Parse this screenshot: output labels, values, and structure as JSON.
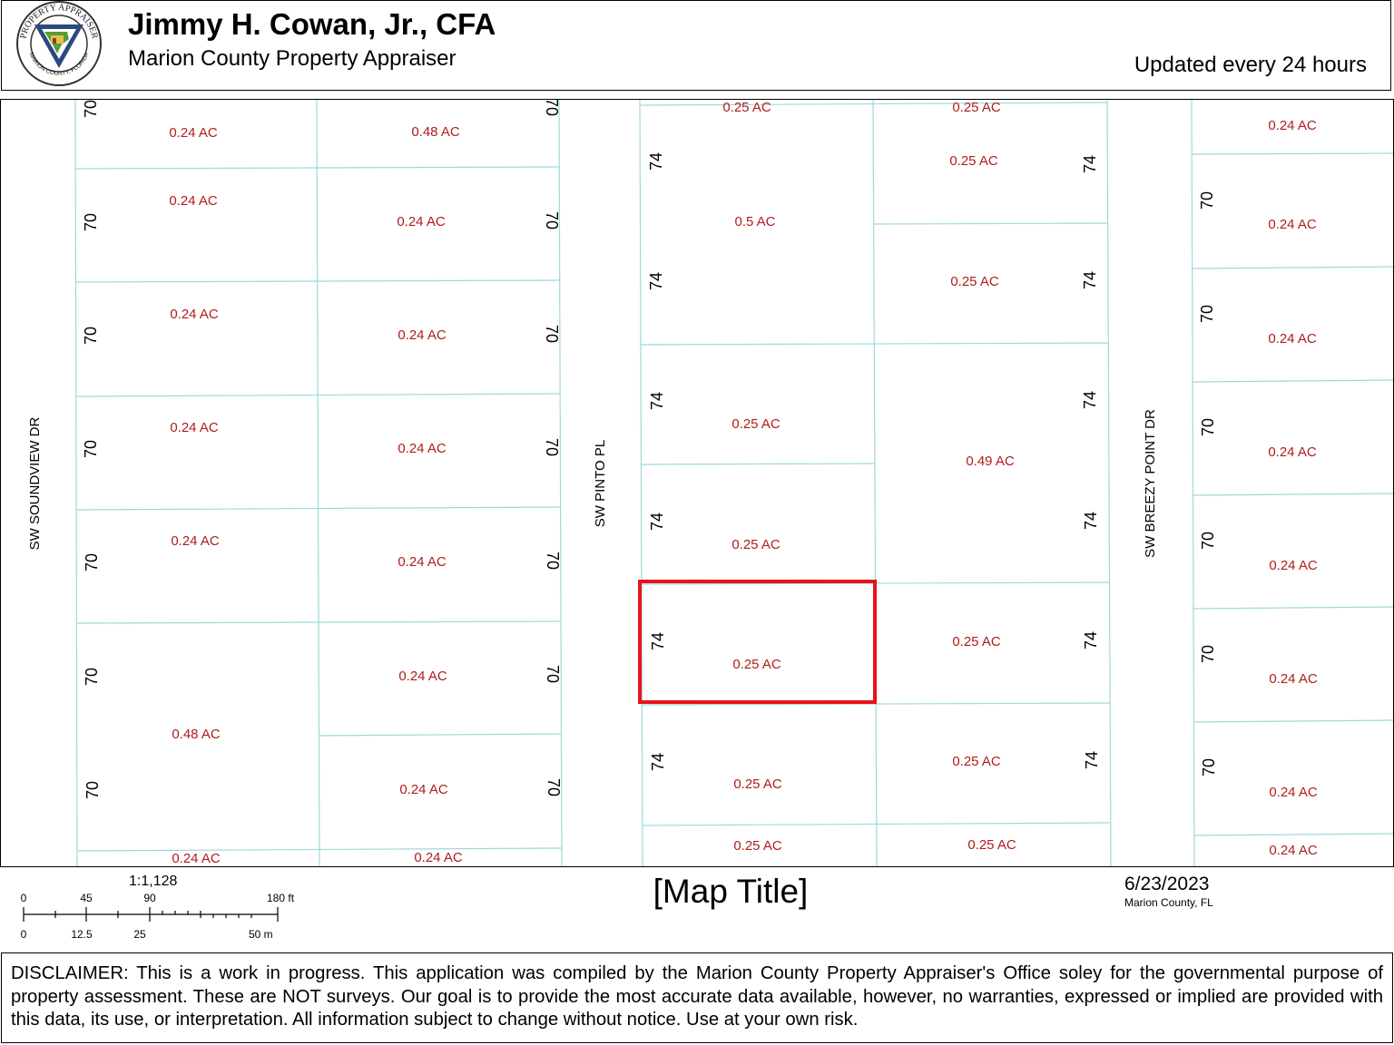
{
  "header": {
    "appraiser_name": "Jimmy H. Cowan, Jr., CFA",
    "office": "Marion County Property Appraiser",
    "updated": "Updated every 24 hours",
    "seal_top_text": "PROPERTY APPRAISER",
    "seal_bottom_text": "MARION COUNTY, FLORIDA"
  },
  "map": {
    "streets": {
      "soundview": "SW SOUNDVIEW DR",
      "pinto": "SW PINTO PL",
      "breezy": "SW BREEZY POINT DR"
    },
    "acres": {
      "a1": "0.24 AC",
      "a2": "0.24 AC",
      "a3": "0.24 AC",
      "a4": "0.24 AC",
      "a5": "0.24 AC",
      "a6": "0.48 AC",
      "a7": "0.24 AC",
      "b1": "0.48 AC",
      "b2": "0.24 AC",
      "b3": "0.24 AC",
      "b4": "0.24 AC",
      "b5": "0.24 AC",
      "b6": "0.24 AC",
      "b7": "0.24 AC",
      "b8": "0.24 AC",
      "c1": "0.25 AC",
      "c2": "0.5 AC",
      "c3": "0.25 AC",
      "c4": "0.25 AC",
      "c5": "0.25 AC",
      "c6": "0.25 AC",
      "c7": "0.25 AC",
      "d1": "0.25 AC",
      "d2": "0.25 AC",
      "d3": "0.25 AC",
      "d4": "0.49 AC",
      "d5": "0.25 AC",
      "d6": "0.25 AC",
      "d7": "0.25 AC",
      "e1": "0.24 AC",
      "e2": "0.24 AC",
      "e3": "0.24 AC",
      "e4": "0.24 AC",
      "e5": "0.24 AC",
      "e6": "0.24 AC",
      "e7": "0.24 AC",
      "e8": "0.24 AC"
    },
    "dimensions": {
      "a1": "70",
      "a2": "70",
      "a3": "70",
      "a4": "70",
      "a5": "70",
      "a6": "70",
      "a7": "70",
      "b1": "70",
      "b2": "70",
      "b3": "70",
      "b4": "70",
      "b5": "70",
      "b6": "70",
      "b7": "70",
      "c1": "74",
      "c2": "74",
      "c3": "74",
      "c4": "74",
      "c5": "74",
      "c6": "74",
      "d1": "74",
      "d2": "74",
      "d3": "74",
      "d4": "74",
      "d5": "74",
      "d6": "74",
      "e1": "70",
      "e2": "70",
      "e3": "70",
      "e4": "70",
      "e5": "70",
      "e6": "70"
    },
    "highlight_color": "#e8141c",
    "parcel_line_color": "#9fd8dc",
    "acre_label_color": "#b01c1c"
  },
  "footer": {
    "scale_ratio": "1:1,128",
    "scale_ft": [
      "0",
      "45",
      "90",
      "180 ft"
    ],
    "scale_m": [
      "0",
      "12.5",
      "25",
      "50 m"
    ],
    "map_title": "[Map Title]",
    "date": "6/23/2023",
    "county": "Marion County, FL"
  },
  "disclaimer": "DISCLAIMER: This is a work in progress. This application was compiled by the Marion County Property Appraiser's Office soley for the governmental purpose of property assessment. These are NOT surveys. Our goal is to provide the most accurate data available, however, no warranties, expressed or implied are provided with this data, its use, or interpretation. All information subject to change without notice. Use at your own risk."
}
